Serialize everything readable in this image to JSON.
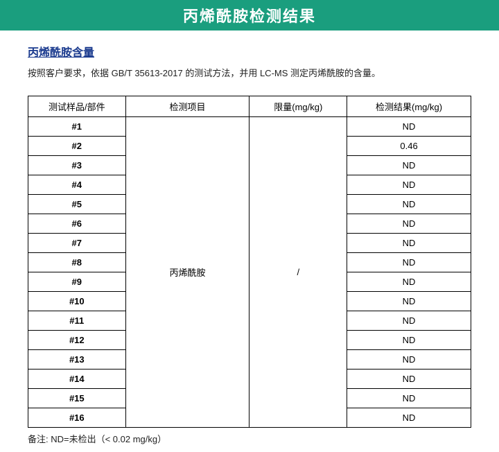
{
  "banner": {
    "title": "丙烯酰胺检测结果"
  },
  "section": {
    "title": "丙烯酰胺含量",
    "description": "按照客户要求，依据 GB/T 35613-2017 的测试方法，并用 LC-MS 测定丙烯酰胺的含量。"
  },
  "table": {
    "columns": [
      "测试样品/部件",
      "检测项目",
      "限量(mg/kg)",
      "检测结果(mg/kg)"
    ],
    "merged_item": "丙烯酰胺",
    "merged_limit": "/",
    "rows": [
      {
        "sample": "#1",
        "result": "ND"
      },
      {
        "sample": "#2",
        "result": "0.46"
      },
      {
        "sample": "#3",
        "result": "ND"
      },
      {
        "sample": "#4",
        "result": "ND"
      },
      {
        "sample": "#5",
        "result": "ND"
      },
      {
        "sample": "#6",
        "result": "ND"
      },
      {
        "sample": "#7",
        "result": "ND"
      },
      {
        "sample": "#8",
        "result": "ND"
      },
      {
        "sample": "#9",
        "result": "ND"
      },
      {
        "sample": "#10",
        "result": "ND"
      },
      {
        "sample": "#11",
        "result": "ND"
      },
      {
        "sample": "#12",
        "result": "ND"
      },
      {
        "sample": "#13",
        "result": "ND"
      },
      {
        "sample": "#14",
        "result": "ND"
      },
      {
        "sample": "#15",
        "result": "ND"
      },
      {
        "sample": "#16",
        "result": "ND"
      }
    ]
  },
  "note": "备注: ND=未检出（< 0.02 mg/kg）",
  "styling": {
    "banner_bg": "#1a9e7e",
    "banner_text_color": "#ffffff",
    "title_color": "#1a3a8e",
    "border_color": "#000000",
    "font_main": "Microsoft YaHei, SimSun, Arial, sans-serif",
    "banner_fontsize": 22,
    "title_fontsize": 16,
    "body_fontsize": 13
  }
}
